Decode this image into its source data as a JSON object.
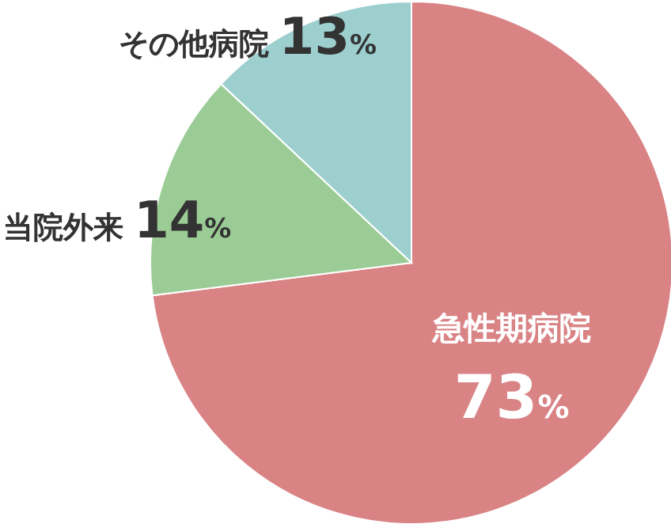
{
  "chart_data": {
    "type": "pie",
    "categories": [
      "急性期病院",
      "当院外来",
      "その他病院"
    ],
    "values": [
      73,
      14,
      13
    ],
    "colors": [
      "#d98385",
      "#9ccc96",
      "#9dcfcf"
    ],
    "value_labels": [
      "73%",
      "14%",
      "13%"
    ]
  }
}
